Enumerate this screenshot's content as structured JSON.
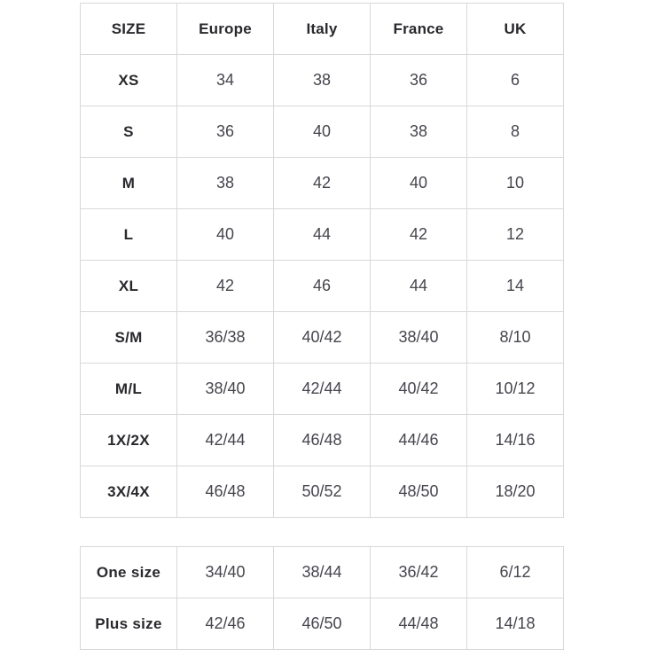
{
  "chart_data": [
    {
      "type": "table",
      "name": "size-conversion-chart",
      "columns": [
        "SIZE",
        "Europe",
        "Italy",
        "France",
        "UK"
      ],
      "rows": [
        {
          "label": "XS",
          "values": [
            "34",
            "38",
            "36",
            "6"
          ]
        },
        {
          "label": "S",
          "values": [
            "36",
            "40",
            "38",
            "8"
          ]
        },
        {
          "label": "M",
          "values": [
            "38",
            "42",
            "40",
            "10"
          ]
        },
        {
          "label": "L",
          "values": [
            "40",
            "44",
            "42",
            "12"
          ]
        },
        {
          "label": "XL",
          "values": [
            "42",
            "46",
            "44",
            "14"
          ]
        },
        {
          "label": "S/M",
          "values": [
            "36/38",
            "40/42",
            "38/40",
            "8/10"
          ]
        },
        {
          "label": "M/L",
          "values": [
            "38/40",
            "42/44",
            "40/42",
            "10/12"
          ]
        },
        {
          "label": "1X/2X",
          "values": [
            "42/44",
            "46/48",
            "44/46",
            "14/16"
          ]
        },
        {
          "label": "3X/4X",
          "values": [
            "46/48",
            "50/52",
            "48/50",
            "18/20"
          ]
        }
      ]
    },
    {
      "type": "table",
      "name": "special-size-conversion-chart",
      "header_visible": false,
      "rows": [
        {
          "label": "One size",
          "values": [
            "34/40",
            "38/44",
            "36/42",
            "6/12"
          ]
        },
        {
          "label": "Plus size",
          "values": [
            "42/46",
            "46/50",
            "44/48",
            "14/18"
          ]
        }
      ]
    }
  ],
  "colors": {
    "border": "#d8d8d8",
    "header_text": "#28282d",
    "value_text": "#45454d",
    "background": "#ffffff"
  }
}
